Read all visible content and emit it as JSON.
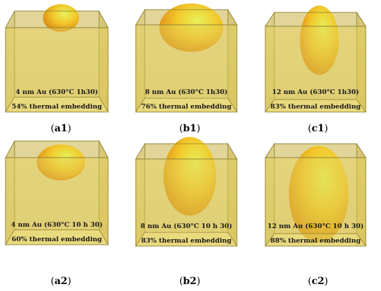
{
  "panels": [
    {
      "id": "a1",
      "label_letter": "a",
      "label_num": "1",
      "line1": "4 nm Au (630°C 1h30)",
      "line2": "54% thermal embedding"
    },
    {
      "id": "b1",
      "label_letter": "b",
      "label_num": "1",
      "line1": "8 nm Au (630°C 1h30)",
      "line2": "76% thermal embedding"
    },
    {
      "id": "c1",
      "label_letter": "c",
      "label_num": "1",
      "line1": "12 nm Au (630°C 1h30)",
      "line2": "83% thermal embedding"
    },
    {
      "id": "a2",
      "label_letter": "a",
      "label_num": "2",
      "line1": "4 nm Au (630°C 10 h 30)",
      "line2": "60% thermal embedding"
    },
    {
      "id": "b2",
      "label_letter": "b",
      "label_num": "2",
      "line1": "8 nm Au (630°C 10 h 30)",
      "line2": "83% thermal embedding"
    },
    {
      "id": "c2",
      "label_letter": "c",
      "label_num": "2",
      "line1": "12 nm Au (630°C 10 h 30)",
      "line2": "88% thermal embedding"
    }
  ],
  "colors": {
    "cube_front": "#e3d055",
    "cube_side": "#c9b347",
    "cube_edge": "#8a7d2e",
    "particle_light": "#e8f060",
    "particle_mid": "#f0b820",
    "particle_dark": "#d07810"
  }
}
